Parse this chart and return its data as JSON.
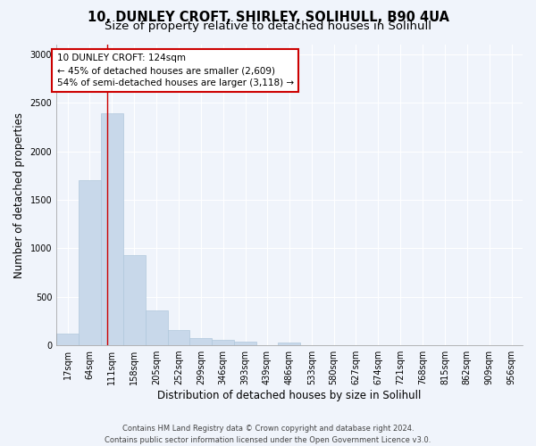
{
  "title_line1": "10, DUNLEY CROFT, SHIRLEY, SOLIHULL, B90 4UA",
  "title_line2": "Size of property relative to detached houses in Solihull",
  "xlabel": "Distribution of detached houses by size in Solihull",
  "ylabel": "Number of detached properties",
  "bar_color": "#c8d8ea",
  "bar_edge_color": "#b0c8dc",
  "annotation_box_color": "#cc0000",
  "annotation_line_color": "#cc0000",
  "annotation_title": "10 DUNLEY CROFT: 124sqm",
  "annotation_line2": "← 45% of detached houses are smaller (2,609)",
  "annotation_line3": "54% of semi-detached houses are larger (3,118) →",
  "footer_line1": "Contains HM Land Registry data © Crown copyright and database right 2024.",
  "footer_line2": "Contains public sector information licensed under the Open Government Licence v3.0.",
  "bins": [
    17,
    64,
    111,
    158,
    205,
    252,
    299,
    346,
    393,
    439,
    486,
    533,
    580,
    627,
    674,
    721,
    768,
    815,
    862,
    909,
    956
  ],
  "counts": [
    120,
    1700,
    2390,
    930,
    360,
    155,
    75,
    55,
    35,
    0,
    30,
    0,
    0,
    0,
    0,
    0,
    0,
    0,
    0,
    0
  ],
  "ylim": [
    0,
    3100
  ],
  "yticks": [
    0,
    500,
    1000,
    1500,
    2000,
    2500,
    3000
  ],
  "vline_x": 124,
  "background_color": "#f0f4fb",
  "plot_bg_color": "#f0f4fb",
  "grid_color": "#ffffff",
  "title_fontsize": 10.5,
  "subtitle_fontsize": 9.5,
  "axis_label_fontsize": 8.5,
  "tick_fontsize": 7,
  "annotation_fontsize": 7.5,
  "footer_fontsize": 6
}
